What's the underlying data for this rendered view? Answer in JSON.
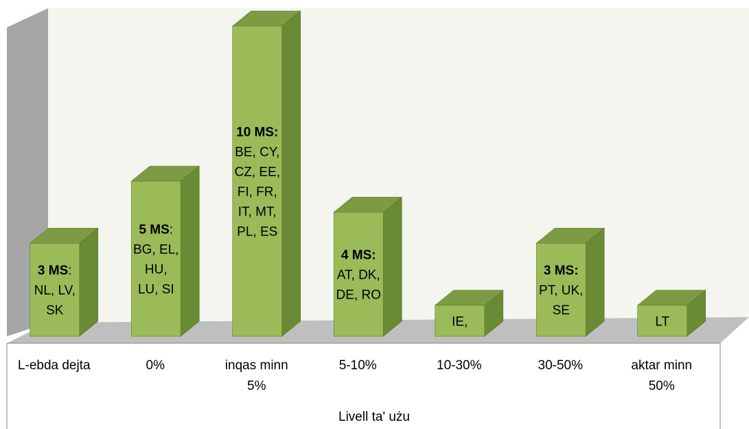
{
  "chart_data": {
    "type": "bar",
    "title": "",
    "xlabel": "Livell ta' użu",
    "ylabel": "",
    "grid": false,
    "legend": "none",
    "categories": [
      "L-ebda dejta",
      "0%",
      "inqas minn 5%",
      "5-10%",
      "10-30%",
      "30-50%",
      "aktar minn 50%"
    ],
    "category_lines": [
      [
        "L-ebda dejta"
      ],
      [
        "0%"
      ],
      [
        "inqas minn",
        "5%"
      ],
      [
        "5-10%"
      ],
      [
        "10-30%"
      ],
      [
        "30-50%"
      ],
      [
        "aktar minn",
        "50%"
      ]
    ],
    "series": [
      {
        "values": [
          3,
          5,
          10,
          4,
          1,
          3,
          1
        ]
      }
    ],
    "ylim": [
      0,
      10
    ],
    "data_labels": [
      {
        "bold": "3 MS",
        "rest": ":",
        "lines": [
          "NL, LV,",
          "SK"
        ]
      },
      {
        "bold": "5 MS",
        "rest": ":",
        "lines": [
          "BG, EL,",
          "HU,",
          "LU, SI"
        ]
      },
      {
        "bold": "10 MS:",
        "rest": "",
        "lines": [
          "BE, CY,",
          "CZ, EE,",
          "FI, FR,",
          "IT, MT,",
          "PL, ES"
        ]
      },
      {
        "bold": "4 MS:",
        "rest": "",
        "lines": [
          "AT, DK,",
          "DE, RO"
        ]
      },
      {
        "bold": "",
        "rest": "",
        "lines": [
          "IE,"
        ]
      },
      {
        "bold": "3 MS:",
        "rest": "",
        "lines": [
          "PT, UK,",
          "SE"
        ]
      },
      {
        "bold": "",
        "rest": "",
        "lines": [
          "LT"
        ]
      }
    ],
    "colors": {
      "bar_front": "#9bbb59",
      "bar_side": "#6a8a36",
      "bar_top": "#7d9b42",
      "bar_stroke": "#5c7a2a",
      "wall": "#f3f5ee",
      "wall_side": "#a6a6a6",
      "floor": "#bfbfbf",
      "axis_line": "#808080",
      "text": "#000000"
    }
  }
}
